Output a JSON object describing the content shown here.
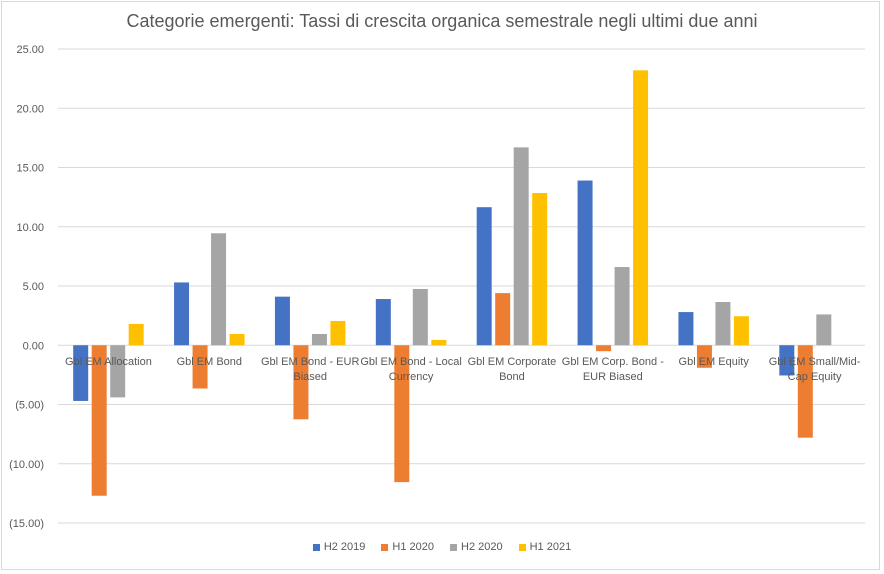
{
  "chart_data": {
    "type": "bar",
    "title": "Categorie emergenti: Tassi di crescita organica semestrale negli ultimi due anni",
    "xlabel": "",
    "ylabel": "",
    "ylim": [
      -15,
      25
    ],
    "yticks": [
      25,
      20,
      15,
      10,
      5,
      0,
      -5,
      -10,
      -15
    ],
    "ytick_labels": [
      "25.00",
      "20.00",
      "15.00",
      "10.00",
      "5.00",
      "0.00",
      "(5.00)",
      "(10.00)",
      "(15.00)"
    ],
    "grid": true,
    "legend_position": "bottom",
    "categories": [
      [
        "Gbl EM Allocation"
      ],
      [
        "Gbl EM Bond"
      ],
      [
        "Gbl EM Bond - EUR",
        "Biased"
      ],
      [
        "Gbl EM Bond - Local",
        "Currency"
      ],
      [
        "Gbl EM Corporate",
        "Bond"
      ],
      [
        "Gbl EM Corp. Bond -",
        "EUR Biased"
      ],
      [
        "Gbl EM Equity"
      ],
      [
        "Gbl EM Small/Mid-",
        "Cap Equity"
      ]
    ],
    "series": [
      {
        "name": "H2 2019",
        "color": "#4472C4",
        "values": [
          -4.7,
          5.3,
          4.1,
          3.9,
          11.65,
          13.9,
          2.8,
          -2.55
        ]
      },
      {
        "name": "H1 2020",
        "color": "#ED7D31",
        "values": [
          -12.7,
          -3.65,
          -6.25,
          -11.55,
          4.4,
          -0.5,
          -1.9,
          -7.8
        ]
      },
      {
        "name": "H2 2020",
        "color": "#A5A5A5",
        "values": [
          -4.4,
          9.45,
          0.95,
          4.75,
          16.7,
          6.6,
          3.65,
          2.6
        ]
      },
      {
        "name": "H1 2021",
        "color": "#FFC000",
        "values": [
          1.8,
          0.95,
          2.05,
          0.45,
          12.85,
          23.2,
          2.45,
          0
        ]
      }
    ]
  }
}
